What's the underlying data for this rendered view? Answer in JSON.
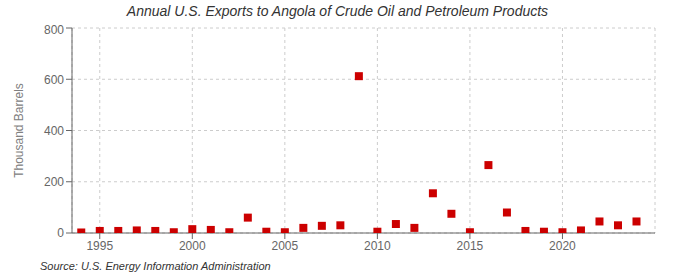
{
  "chart_data": {
    "type": "scatter",
    "title": "Annual U.S. Exports to Angola of Crude Oil and Petroleum Products",
    "ylabel": "Thousand Barrels",
    "annotations": [
      "Source: U.S. Energy Information Administration"
    ],
    "x": [
      1994,
      1995,
      1996,
      1997,
      1998,
      1999,
      2000,
      2001,
      2002,
      2003,
      2004,
      2005,
      2006,
      2007,
      2008,
      2009,
      2010,
      2011,
      2012,
      2013,
      2014,
      2015,
      2016,
      2017,
      2018,
      2019,
      2020,
      2021,
      2022,
      2023,
      2024
    ],
    "values": [
      2,
      8,
      8,
      10,
      8,
      3,
      15,
      12,
      3,
      60,
      5,
      3,
      20,
      28,
      30,
      612,
      5,
      35,
      20,
      155,
      75,
      3,
      265,
      80,
      8,
      5,
      3,
      10,
      45,
      30,
      45
    ],
    "color": "#cc0000",
    "marker": "square",
    "xlim": [
      1993.5,
      2025
    ],
    "xticks": [
      1995,
      2000,
      2005,
      2010,
      2015,
      2020
    ],
    "ylim": [
      0,
      800
    ],
    "yticks": [
      0,
      200,
      400,
      600,
      800
    ],
    "grid": true
  }
}
